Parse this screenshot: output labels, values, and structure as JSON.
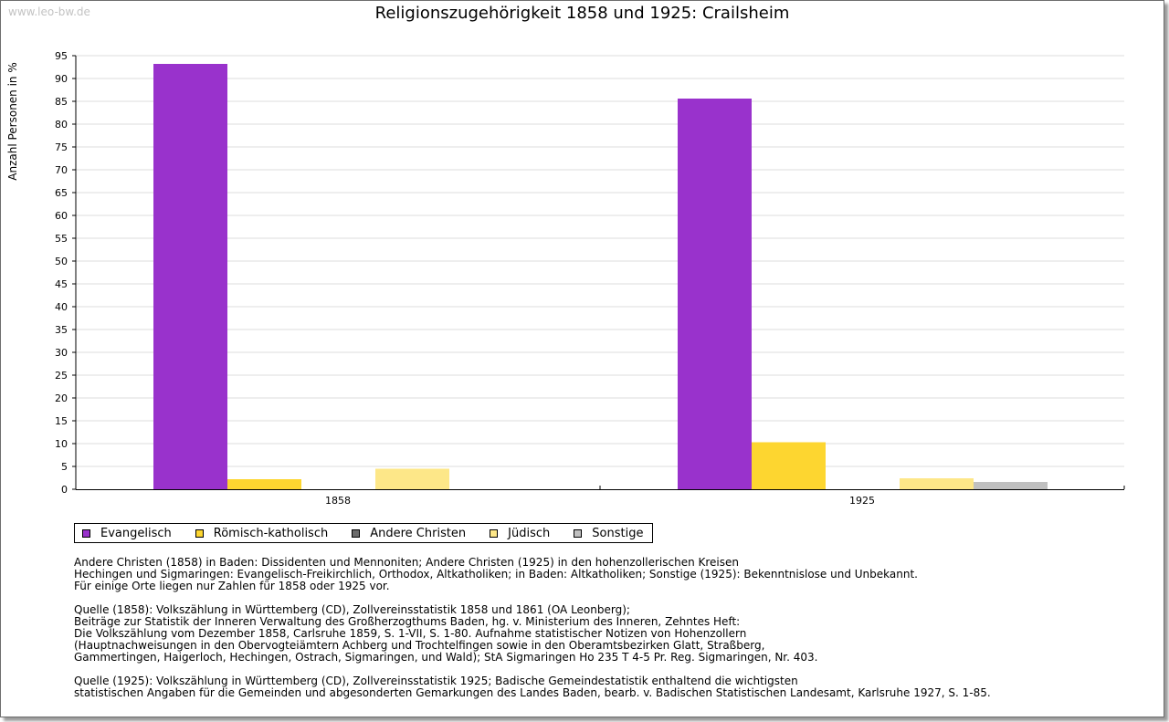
{
  "watermark": "www.leo-bw.de",
  "chart_data": {
    "type": "bar",
    "title": "Religionszugehörigkeit 1858 und 1925: Crailsheim",
    "ylabel": "Anzahl Personen in %",
    "xlabel": "",
    "categories": [
      "1858",
      "1925"
    ],
    "ylim": [
      0,
      95
    ],
    "yticks": [
      0,
      5,
      10,
      15,
      20,
      25,
      30,
      35,
      40,
      45,
      50,
      55,
      60,
      65,
      70,
      75,
      80,
      85,
      90,
      95
    ],
    "grid": true,
    "legend_position": "bottom-left",
    "series": [
      {
        "name": "Evangelisch",
        "color": "#9932cc",
        "values": [
          93.2,
          85.6
        ]
      },
      {
        "name": "Römisch-katholisch",
        "color": "#fdd630",
        "values": [
          2.2,
          10.3
        ]
      },
      {
        "name": "Andere Christen",
        "color": "#6b6b6b",
        "values": [
          0,
          0
        ]
      },
      {
        "name": "Jüdisch",
        "color": "#fde788",
        "values": [
          4.5,
          2.4
        ]
      },
      {
        "name": "Sonstige",
        "color": "#c0c0c0",
        "values": [
          0,
          1.6
        ]
      }
    ]
  },
  "notes": [
    [
      "Andere Christen (1858) in Baden: Dissidenten und Mennoniten; Andere Christen (1925) in den hohenzollerischen Kreisen",
      "Hechingen und Sigmaringen: Evangelisch-Freikirchlich, Orthodox, Altkatholiken; in Baden: Altkatholiken; Sonstige (1925): Bekenntnislose und Unbekannt.",
      "Für einige Orte liegen nur Zahlen für 1858 oder 1925 vor."
    ],
    [
      "Quelle (1858): Volkszählung in Württemberg (CD), Zollvereinsstatistik 1858 und 1861 (OA Leonberg);",
      "Beiträge zur Statistik der Inneren Verwaltung des Großherzogthums Baden, hg. v. Ministerium des Inneren, Zehntes Heft:",
      "Die Volkszählung vom Dezember 1858, Carlsruhe 1859, S. 1-VII, S. 1-80. Aufnahme statistischer Notizen von Hohenzollern",
      "(Hauptnachweisungen in den Obervogteiämtern Achberg und Trochtelfingen sowie in den Oberamtsbezirken Glatt, Straßberg,",
      "Gammertingen, Haigerloch, Hechingen, Ostrach, Sigmaringen, und Wald); StA Sigmaringen Ho 235 T 4-5 Pr. Reg. Sigmaringen, Nr. 403."
    ],
    [
      "Quelle (1925): Volkszählung in Württemberg (CD), Zollvereinsstatistik 1925; Badische Gemeindestatistik enthaltend die wichtigsten",
      "statistischen Angaben für die Gemeinden und abgesonderten Gemarkungen des Landes Baden, bearb. v. Badischen Statistischen Landesamt, Karlsruhe 1927, S. 1-85."
    ]
  ]
}
